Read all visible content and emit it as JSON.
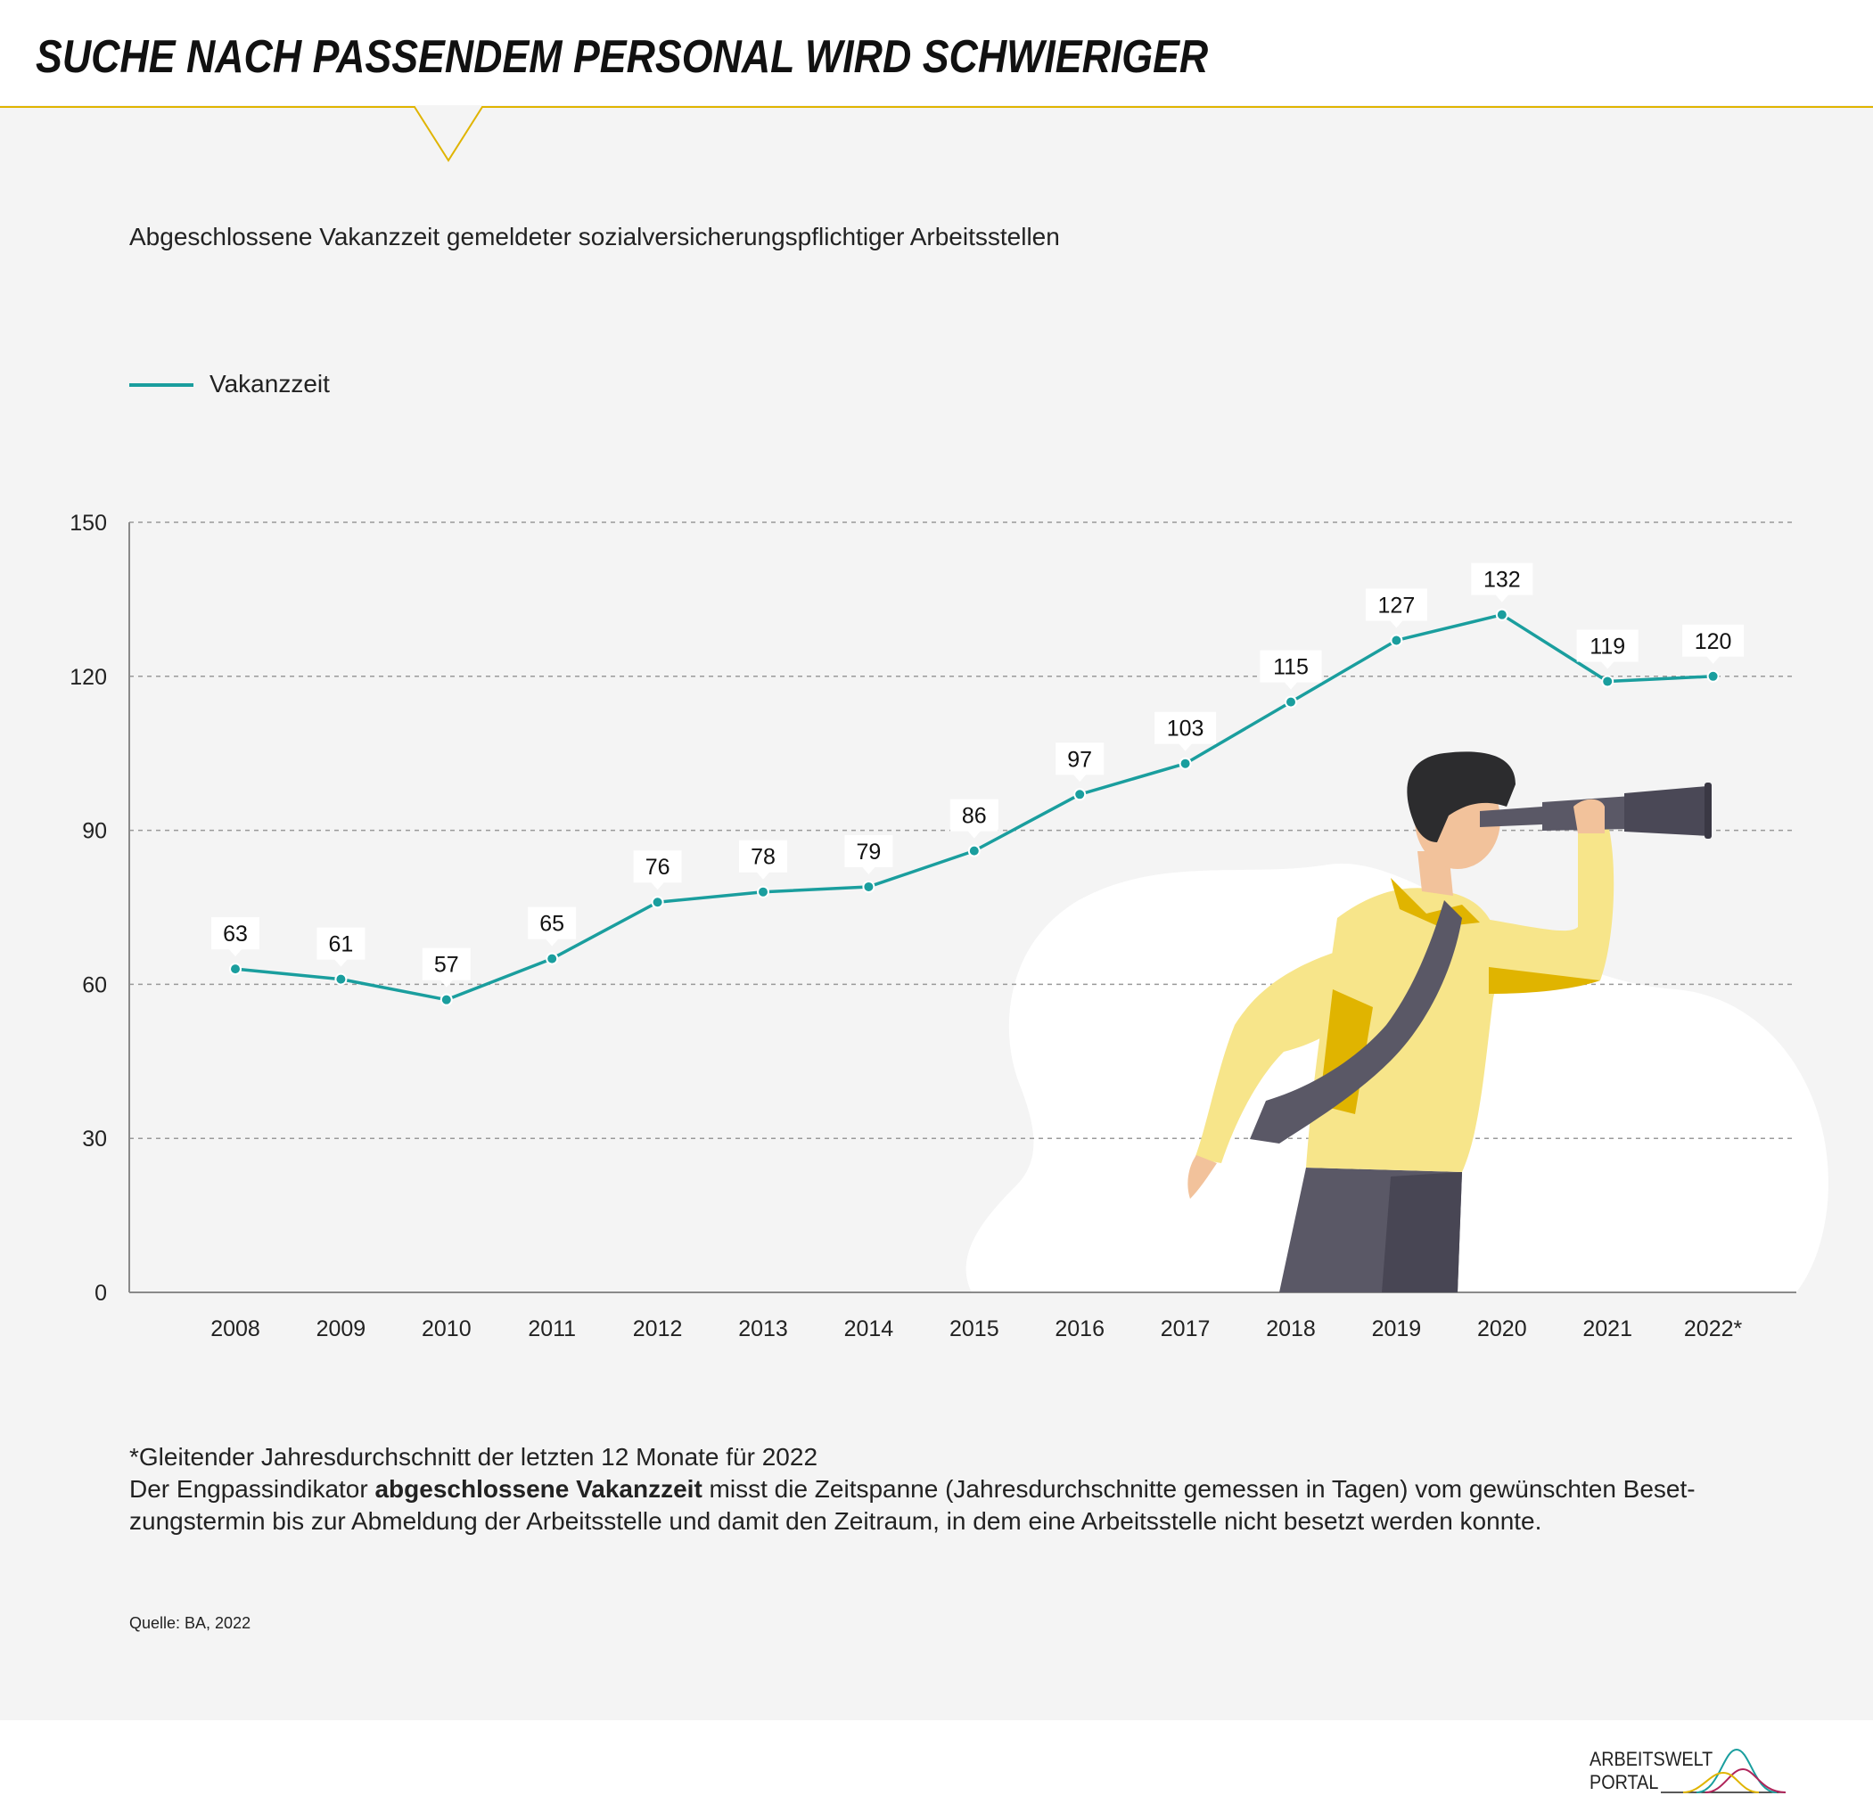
{
  "header": {
    "title": "SUCHE NACH PASSENDEM PERSONAL WIRD SCHWIERIGER"
  },
  "subtitle": "Abgeschlossene Vakanzzeit gemeldeter sozialversicherungspflichtiger Arbeitsstellen",
  "colors": {
    "series": "#1a9e9e",
    "accent": "#e0b400",
    "panel": "#f4f4f4"
  },
  "chart_data": {
    "type": "line",
    "categories": [
      "2008",
      "2009",
      "2010",
      "2011",
      "2012",
      "2013",
      "2014",
      "2015",
      "2016",
      "2017",
      "2018",
      "2019",
      "2020",
      "2021",
      "2022*"
    ],
    "series": [
      {
        "name": "Vakanzzeit",
        "values": [
          63,
          61,
          57,
          65,
          76,
          78,
          79,
          86,
          97,
          103,
          115,
          127,
          132,
          119,
          120
        ]
      }
    ],
    "y_ticks": [
      0,
      30,
      60,
      90,
      120,
      150
    ],
    "ylim": [
      0,
      150
    ],
    "xlabel": "",
    "ylabel": "",
    "grid": "horizontal dashed",
    "legend_position": "top-left",
    "data_labels": true
  },
  "notes": {
    "footnote": "*Gleitender Jahresdurchschnitt der letzten 12 Monate für 2022",
    "text_before": "Der Engpassindikator ",
    "text_bold": "abgeschlossene Vakanzzeit",
    "text_after": " misst die Zeitspanne (Jahresdurchschnitte gemessen in Tagen) vom gewünschten Beset-zungstermin bis zur Abmeldung der Arbeitsstelle und damit den Zeitraum, in dem eine Arbeitsstelle nicht besetzt werden konnte."
  },
  "source": "Quelle: BA, 2022",
  "logo": {
    "line1": "ARBEITSWELT",
    "line2": "PORTAL"
  }
}
